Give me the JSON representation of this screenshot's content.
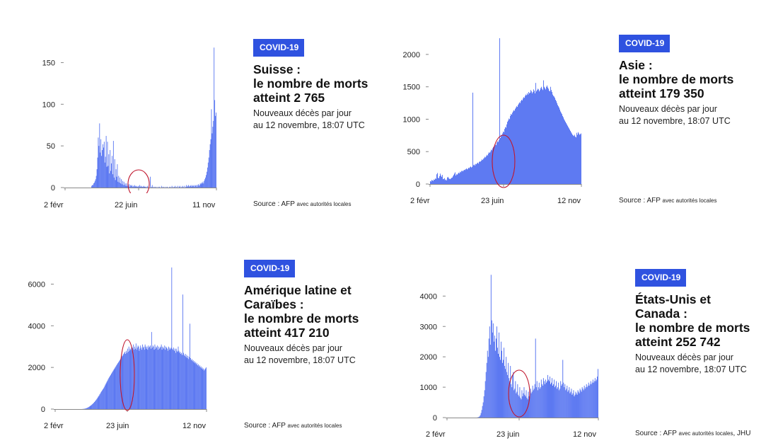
{
  "colors": {
    "bar": "#4d6cf0",
    "badge": "#2f52e0",
    "highlight": "#c0162d"
  },
  "panels": [
    {
      "id": "suisse",
      "badge": "COVID-19",
      "headline": [
        "Suisse :",
        "le nombre de morts",
        "atteint 2 765"
      ],
      "subtitle": [
        "Nouveaux décès par jour",
        "au 12 novembre, 18:07 UTC"
      ],
      "source_main": "Source : AFP",
      "source_small": "avec autorités locales",
      "source_tail": ""
    },
    {
      "id": "asie",
      "badge": "COVID-19",
      "headline": [
        "Asie :",
        "le nombre de morts",
        "atteint 179 350"
      ],
      "subtitle": [
        "Nouveaux décès par jour",
        "au 12 novembre, 18:07 UTC"
      ],
      "source_main": "Source : AFP",
      "source_small": "avec autorités locales",
      "source_tail": ""
    },
    {
      "id": "amerique-latine",
      "badge": "COVID-19",
      "headline": [
        "Amérique latine et",
        "Caraïbes :",
        "le nombre de morts",
        "atteint 417 210"
      ],
      "subtitle": [
        "Nouveaux décès par jour",
        "au 12 novembre, 18:07 UTC"
      ],
      "source_main": "Source : AFP",
      "source_small": "avec autorités locales",
      "source_tail": ""
    },
    {
      "id": "etats-unis-canada",
      "badge": "COVID-19",
      "headline": [
        "États-Unis et",
        "Canada :",
        "le nombre de morts",
        "atteint 252 742"
      ],
      "subtitle": [
        "Nouveaux décès par jour",
        "au 12 novembre, 18:07 UTC"
      ],
      "source_main": "Source : AFP",
      "source_small": "avec autorités locales",
      "source_tail": ", JHU"
    }
  ],
  "chart_data": [
    {
      "type": "bar",
      "region": "Suisse",
      "x_range": [
        "2020-02-02",
        "2020-11-12"
      ],
      "x_tick_labels": [
        "2 févr",
        "22 juin",
        "11 nov"
      ],
      "y_ticks": [
        0,
        50,
        100,
        150
      ],
      "ylim": [
        0,
        175
      ],
      "series": [
        {
          "values": [
            0,
            0,
            0,
            0,
            0,
            0,
            0,
            0,
            0,
            0,
            0,
            0,
            0,
            0,
            0,
            0,
            0,
            0,
            0,
            0,
            0,
            0,
            0,
            0,
            0,
            0,
            0,
            0,
            0,
            0,
            0,
            0,
            0,
            0,
            0,
            0,
            0,
            0,
            0,
            0,
            2,
            3,
            3,
            5,
            6,
            8,
            10,
            14,
            22,
            36,
            60,
            50,
            77,
            42,
            58,
            38,
            45,
            52,
            48,
            55,
            30,
            37,
            62,
            25,
            55,
            26,
            40,
            17,
            45,
            20,
            29,
            38,
            16,
            56,
            12,
            34,
            9,
            22,
            13,
            28,
            7,
            14,
            6,
            12,
            5,
            10,
            4,
            8,
            3,
            7,
            3,
            5,
            2,
            5,
            2,
            4,
            1,
            4,
            1,
            3,
            2,
            3,
            1,
            2,
            1,
            3,
            2,
            1,
            2,
            1,
            1,
            2,
            1,
            3,
            1,
            2,
            1,
            1,
            1,
            2,
            1,
            1,
            1,
            0,
            1,
            2,
            0,
            1,
            0,
            13,
            0,
            1,
            3,
            0,
            1,
            0,
            1,
            0,
            1,
            0,
            0,
            1,
            0,
            1,
            0,
            0,
            2,
            0,
            1,
            0,
            1,
            0,
            0,
            1,
            0,
            1,
            0,
            0,
            1,
            0,
            1,
            0,
            2,
            0,
            1,
            0,
            1,
            2,
            0,
            1,
            0,
            2,
            0,
            1,
            2,
            0,
            1,
            0,
            2,
            1,
            0,
            2,
            0,
            1,
            3,
            1,
            2,
            3,
            1,
            2,
            2,
            3,
            1,
            2,
            3,
            2,
            1,
            3,
            2,
            3,
            1,
            3,
            4,
            2,
            3,
            5,
            4,
            6,
            5,
            7,
            5,
            8,
            10,
            12,
            15,
            19,
            24,
            30,
            36,
            45,
            52,
            58,
            94,
            65,
            73,
            80,
            168,
            105,
            86,
            90
          ]
        }
      ],
      "highlight": {
        "shape": "ellipse",
        "around": "22 juin"
      }
    },
    {
      "type": "bar",
      "region": "Asie",
      "x_range": [
        "2020-02-02",
        "2020-11-12"
      ],
      "x_tick_labels": [
        "2 févr",
        "23 juin",
        "12 nov"
      ],
      "y_ticks": [
        0,
        500,
        1000,
        1500,
        2000
      ],
      "ylim": [
        0,
        2250
      ],
      "series": [
        {
          "values": [
            45,
            38,
            62,
            55,
            48,
            70,
            65,
            85,
            80,
            150,
            170,
            95,
            90,
            120,
            160,
            130,
            110,
            140,
            75,
            80,
            90,
            60,
            70,
            55,
            100,
            110,
            90,
            80,
            75,
            85,
            95,
            100,
            120,
            140,
            160,
            180,
            130,
            150,
            145,
            160,
            175,
            165,
            190,
            180,
            200,
            205,
            195,
            210,
            220,
            215,
            230,
            240,
            225,
            235,
            250,
            245,
            260,
            270,
            255,
            265,
            1410,
            290,
            300,
            285,
            310,
            305,
            320,
            330,
            315,
            340,
            350,
            345,
            360,
            380,
            370,
            390,
            400,
            420,
            410,
            430,
            450,
            440,
            470,
            490,
            480,
            500,
            530,
            520,
            550,
            570,
            560,
            590,
            610,
            600,
            640,
            660,
            650,
            680,
            2250,
            710,
            760,
            740,
            780,
            810,
            800,
            850,
            880,
            870,
            920,
            960,
            980,
            1010,
            1000,
            1050,
            1080,
            1070,
            1100,
            1120,
            1140,
            1130,
            1160,
            1180,
            1200,
            1190,
            1220,
            1240,
            1260,
            1250,
            1280,
            1300,
            1290,
            1320,
            1340,
            1330,
            1360,
            1380,
            1370,
            1400,
            1380,
            1420,
            1400,
            1410,
            1450,
            1430,
            1400,
            1420,
            1460,
            1440,
            1400,
            1560,
            1430,
            1450,
            1470,
            1460,
            1430,
            1450,
            1480,
            1500,
            1470,
            1450,
            1600,
            1500,
            1480,
            1460,
            1500,
            1520,
            1490,
            1470,
            1440,
            1430,
            1500,
            1450,
            1420,
            1380,
            1360,
            1350,
            1330,
            1300,
            1280,
            1250,
            1220,
            1200,
            1180,
            1150,
            1120,
            1100,
            1080,
            1050,
            1030,
            1000,
            980,
            960,
            940,
            920,
            900,
            880,
            860,
            840,
            820,
            800,
            780,
            760,
            750,
            740,
            760,
            730,
            720,
            790,
            760,
            800,
            780,
            760,
            770,
            780
          ]
        }
      ],
      "highlight": {
        "shape": "ellipse",
        "around": "23 juin"
      }
    },
    {
      "type": "bar",
      "region": "Amérique latine et Caraïbes",
      "x_range": [
        "2020-02-02",
        "2020-11-12"
      ],
      "x_tick_labels": [
        "2 févr",
        "23 juin",
        "12 nov"
      ],
      "y_ticks": [
        0,
        2000,
        4000,
        6000
      ],
      "ylim": [
        0,
        7000
      ],
      "series": [
        {
          "values": [
            0,
            0,
            0,
            0,
            0,
            0,
            0,
            0,
            0,
            0,
            0,
            0,
            0,
            0,
            0,
            0,
            0,
            0,
            0,
            0,
            0,
            0,
            0,
            0,
            0,
            0,
            0,
            0,
            0,
            0,
            0,
            0,
            0,
            0,
            0,
            0,
            0,
            0,
            0,
            0,
            0,
            2,
            5,
            8,
            12,
            18,
            25,
            35,
            48,
            60,
            80,
            95,
            115,
            140,
            160,
            185,
            210,
            240,
            270,
            300,
            340,
            380,
            420,
            460,
            500,
            550,
            600,
            640,
            700,
            740,
            800,
            850,
            900,
            950,
            1000,
            1050,
            1120,
            1180,
            1240,
            1300,
            1360,
            1420,
            1480,
            1530,
            1590,
            1640,
            1700,
            1750,
            1800,
            1850,
            1900,
            1950,
            2000,
            2050,
            2100,
            2150,
            2200,
            2250,
            2300,
            2350,
            2400,
            2450,
            2500,
            2550,
            2600,
            2650,
            2700,
            2750,
            2650,
            2800,
            2700,
            2900,
            2750,
            3000,
            2800,
            2900,
            2850,
            3000,
            2800,
            2950,
            3100,
            2850,
            3000,
            2900,
            3150,
            2850,
            2950,
            3050,
            3000,
            2800,
            2900,
            3050,
            2950,
            2850,
            3100,
            2950,
            3000,
            2850,
            3100,
            3000,
            2900,
            3000,
            2850,
            3050,
            2950,
            3000,
            3050,
            2900,
            3700,
            2950,
            3050,
            3000,
            2850,
            3100,
            2900,
            3000,
            2950,
            3050,
            2850,
            3000,
            2900,
            2950,
            3000,
            3100,
            2850,
            3000,
            2950,
            2900,
            3050,
            2850,
            3000,
            2950,
            2900,
            2800,
            3000,
            2950,
            2850,
            2900,
            2950,
            6800,
            2900,
            2850,
            2950,
            2800,
            2900,
            2700,
            2900,
            2800,
            2750,
            3000,
            2800,
            2700,
            2750,
            2650,
            2700,
            2600,
            5500,
            2700,
            2600,
            2550,
            2650,
            2500,
            2600,
            2450,
            2550,
            2400,
            2500,
            4100,
            2450,
            2350,
            2400,
            2300,
            2350,
            2250,
            2300,
            2200,
            2250,
            2150,
            2200,
            2100,
            2150,
            2050,
            2100,
            2000,
            2050,
            1950,
            2000,
            1900,
            1950,
            1850,
            1900,
            1950,
            2000
          ]
        }
      ],
      "highlight": {
        "shape": "ellipse",
        "around": "23 juin"
      }
    },
    {
      "type": "bar",
      "region": "États-Unis et Canada",
      "x_range": [
        "2020-02-02",
        "2020-11-12"
      ],
      "x_tick_labels": [
        "2 févr",
        "23 juin",
        "12 nov"
      ],
      "y_ticks": [
        0,
        1000,
        2000,
        3000,
        4000
      ],
      "ylim": [
        0,
        4800
      ],
      "series": [
        {
          "values": [
            0,
            0,
            0,
            0,
            0,
            0,
            0,
            0,
            0,
            0,
            0,
            0,
            0,
            0,
            0,
            0,
            0,
            0,
            0,
            0,
            0,
            0,
            0,
            0,
            0,
            0,
            0,
            0,
            0,
            0,
            0,
            0,
            0,
            0,
            0,
            0,
            0,
            0,
            0,
            0,
            0,
            0,
            5,
            10,
            20,
            40,
            80,
            150,
            250,
            380,
            500,
            700,
            900,
            1200,
            1500,
            1800,
            2200,
            2000,
            2600,
            3000,
            2400,
            4700,
            3200,
            2800,
            3100,
            2500,
            2700,
            2200,
            2600,
            3000,
            2300,
            2100,
            2800,
            2000,
            1900,
            2500,
            2200,
            1800,
            1900,
            2300,
            1700,
            1600,
            2000,
            1500,
            1400,
            1800,
            1300,
            1200,
            1700,
            1100,
            1000,
            1400,
            1500,
            900,
            950,
            1200,
            800,
            850,
            1100,
            750,
            700,
            1000,
            650,
            600,
            900,
            700,
            800,
            1000,
            750,
            700,
            900,
            650,
            600,
            850,
            700,
            750,
            950,
            800,
            850,
            1050,
            900,
            950,
            1100,
            2600,
            1000,
            1200,
            900,
            1000,
            1150,
            950,
            1000,
            1250,
            1100,
            1050,
            1300,
            1200,
            1100,
            1250,
            1150,
            1200,
            1400,
            1250,
            1200,
            1350,
            1100,
            1150,
            1300,
            1050,
            1100,
            1250,
            1000,
            1050,
            1200,
            950,
            1000,
            1150,
            900,
            950,
            1200,
            1050,
            1100,
            1900,
            1150,
            1000,
            1100,
            900,
            950,
            1050,
            850,
            900,
            1000,
            800,
            850,
            950,
            750,
            800,
            900,
            700,
            750,
            850,
            800,
            750,
            900,
            850,
            800,
            950,
            900,
            850,
            1000,
            950,
            900,
            1050,
            950,
            1000,
            1100,
            1000,
            1050,
            1150,
            1050,
            1100,
            1200,
            1100,
            1150,
            1250,
            1150,
            1200,
            1300,
            1200,
            1250,
            1350,
            1600
          ]
        }
      ],
      "highlight": {
        "shape": "ellipse",
        "around": "23 juin"
      }
    }
  ]
}
